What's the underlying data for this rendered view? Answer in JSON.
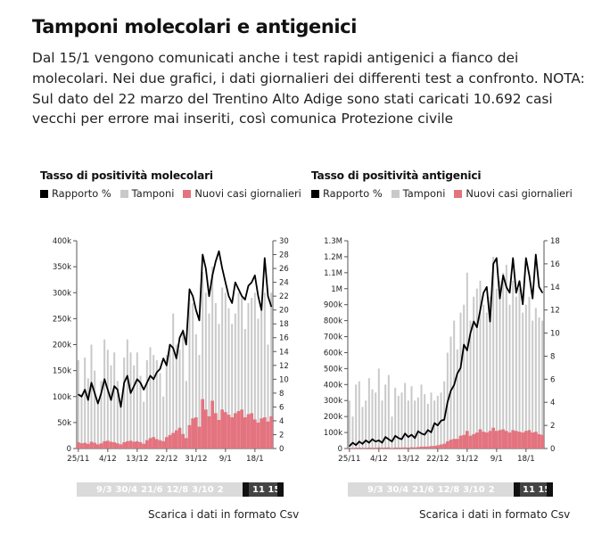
{
  "page": {
    "title": "Tamponi molecolari e antigenici",
    "description": "Dal 15/1 vengono comunicati anche i test rapidi antigenici a fianco dei molecolari. Nei due grafici, i dati giornalieri dei differenti test a confronto. NOTA: Sul dato del 22 marzo del Trentino Alto Adige sono stati caricati 10.692 casi vecchi per errore mai inseriti, così comunica Protezione civile"
  },
  "colors": {
    "line": "#000000",
    "tamponi": "#c9c9c9",
    "casi": "#e3747f",
    "axis": "#555555"
  },
  "chart_data": [
    {
      "type": "bar",
      "title": "Tasso di positività molecolari",
      "legend": [
        "Rapporto %",
        "Tamponi",
        "Nuovi casi giornalieri"
      ],
      "x_tick_labels": [
        "25/11",
        "4/12",
        "13/12",
        "22/12",
        "31/12",
        "9/1",
        "18/1"
      ],
      "x_tick_index": [
        0,
        9,
        18,
        27,
        36,
        45,
        54
      ],
      "y_left": {
        "ticks": [
          0,
          50000,
          100000,
          150000,
          200000,
          250000,
          300000,
          350000,
          400000
        ],
        "tick_labels": [
          "0",
          "50k",
          "100k",
          "150k",
          "200k",
          "250k",
          "300k",
          "350k",
          "400k"
        ],
        "range": [
          0,
          400000
        ]
      },
      "y_right": {
        "ticks": [
          0,
          2,
          4,
          6,
          8,
          10,
          12,
          14,
          16,
          18,
          20,
          22,
          24,
          26,
          28,
          30
        ],
        "tick_labels": [
          "0",
          "2",
          "4",
          "6",
          "8",
          "10",
          "12",
          "14",
          "16",
          "18",
          "20",
          "22",
          "24",
          "26",
          "28",
          "30"
        ],
        "range": [
          0,
          30
        ]
      },
      "series": [
        {
          "name": "Tamponi",
          "axis": "left",
          "kind": "bar",
          "values": [
            170000,
            105000,
            175000,
            135000,
            200000,
            150000,
            90000,
            130000,
            210000,
            190000,
            160000,
            185000,
            130000,
            90000,
            175000,
            210000,
            185000,
            160000,
            185000,
            140000,
            90000,
            170000,
            195000,
            180000,
            170000,
            145000,
            100000,
            180000,
            195000,
            260000,
            200000,
            190000,
            230000,
            130000,
            290000,
            280000,
            220000,
            180000,
            340000,
            300000,
            260000,
            350000,
            280000,
            240000,
            310000,
            300000,
            270000,
            240000,
            260000,
            300000,
            290000,
            230000,
            280000,
            290000,
            300000,
            250000,
            280000,
            300000,
            200000,
            300000
          ]
        },
        {
          "name": "Nuovi casi giornalieri",
          "axis": "left",
          "kind": "bar",
          "values": [
            12000,
            10000,
            11000,
            9000,
            13000,
            11000,
            8000,
            10000,
            14000,
            15000,
            13000,
            12000,
            10000,
            8000,
            12000,
            14000,
            15000,
            13000,
            14000,
            12000,
            9000,
            16000,
            20000,
            22000,
            18000,
            16000,
            14000,
            22000,
            26000,
            30000,
            35000,
            40000,
            28000,
            20000,
            45000,
            58000,
            60000,
            42000,
            95000,
            75000,
            62000,
            92000,
            68000,
            55000,
            75000,
            70000,
            65000,
            60000,
            68000,
            72000,
            75000,
            60000,
            66000,
            68000,
            56000,
            50000,
            58000,
            60000,
            52000,
            62000
          ]
        },
        {
          "name": "Rapporto %",
          "axis": "right",
          "kind": "line",
          "values": [
            7.8,
            7.5,
            8.5,
            7.0,
            9.5,
            8.0,
            6.5,
            8.0,
            10.0,
            8.5,
            7.0,
            9.0,
            8.5,
            6.0,
            9.5,
            10.5,
            8.0,
            9.0,
            10.0,
            9.5,
            8.5,
            9.5,
            10.5,
            10.0,
            11.0,
            11.5,
            13.0,
            12.0,
            15.0,
            14.5,
            13.0,
            16.0,
            17.0,
            15.0,
            23.0,
            22.0,
            20.0,
            18.5,
            28.0,
            26.0,
            22.0,
            25.0,
            27.0,
            28.5,
            26.0,
            24.0,
            22.0,
            21.0,
            24.0,
            23.0,
            22.0,
            21.5,
            23.5,
            24.0,
            25.0,
            22.0,
            20.0,
            27.5,
            22.0,
            20.5
          ]
        }
      ]
    },
    {
      "type": "bar",
      "title": "Tasso di positività antigenici",
      "legend": [
        "Rapporto %",
        "Tamponi",
        "Nuovi casi giornalieri"
      ],
      "x_tick_labels": [
        "25/11",
        "4/12",
        "13/12",
        "22/12",
        "31/12",
        "9/1",
        "18/1"
      ],
      "x_tick_index": [
        0,
        9,
        18,
        27,
        36,
        45,
        54
      ],
      "y_left": {
        "ticks": [
          0,
          100000,
          200000,
          300000,
          400000,
          500000,
          600000,
          700000,
          800000,
          900000,
          1000000,
          1100000,
          1200000,
          1300000
        ],
        "tick_labels": [
          "0",
          "100k",
          "200k",
          "300k",
          "400k",
          "500k",
          "600k",
          "700k",
          "800k",
          "900k",
          "1M",
          "1.1M",
          "1.2M",
          "1.3M"
        ],
        "range": [
          0,
          1300000
        ]
      },
      "y_right": {
        "ticks": [
          0,
          2,
          4,
          6,
          8,
          10,
          12,
          14,
          16,
          18
        ],
        "tick_labels": [
          "0",
          "2",
          "4",
          "6",
          "8",
          "10",
          "12",
          "14",
          "16",
          "18"
        ],
        "range": [
          0,
          18
        ]
      },
      "series": [
        {
          "name": "Tamponi",
          "axis": "left",
          "kind": "bar",
          "values": [
            300000,
            200000,
            400000,
            420000,
            260000,
            300000,
            440000,
            370000,
            350000,
            500000,
            300000,
            400000,
            460000,
            200000,
            380000,
            330000,
            350000,
            410000,
            300000,
            390000,
            300000,
            320000,
            400000,
            340000,
            280000,
            350000,
            300000,
            330000,
            350000,
            420000,
            600000,
            700000,
            800000,
            620000,
            850000,
            900000,
            1100000,
            800000,
            950000,
            1000000,
            1050000,
            900000,
            850000,
            950000,
            1200000,
            1000000,
            1050000,
            1100000,
            1150000,
            900000,
            1050000,
            950000,
            1000000,
            850000,
            900000,
            950000,
            800000,
            880000,
            820000,
            800000
          ]
        },
        {
          "name": "Nuovi casi giornalieri",
          "axis": "left",
          "kind": "bar",
          "values": [
            4000,
            3000,
            5000,
            5000,
            4000,
            4000,
            6000,
            5000,
            5000,
            7000,
            5000,
            6000,
            7000,
            3000,
            6000,
            6000,
            6000,
            7000,
            6000,
            8000,
            7000,
            9000,
            12000,
            12000,
            12000,
            15000,
            16000,
            20000,
            25000,
            30000,
            45000,
            55000,
            60000,
            60000,
            80000,
            85000,
            110000,
            80000,
            90000,
            100000,
            120000,
            105000,
            100000,
            110000,
            130000,
            110000,
            115000,
            120000,
            110000,
            100000,
            115000,
            110000,
            105000,
            100000,
            110000,
            115000,
            100000,
            105000,
            90000,
            85000
          ]
        },
        {
          "name": "Rapporto %",
          "axis": "right",
          "kind": "line",
          "values": [
            0.2,
            0.5,
            0.3,
            0.6,
            0.4,
            0.7,
            0.5,
            0.8,
            0.6,
            0.7,
            0.5,
            1.0,
            0.8,
            0.6,
            1.1,
            0.9,
            0.8,
            1.3,
            1.0,
            1.2,
            0.9,
            1.5,
            1.3,
            1.2,
            1.6,
            1.4,
            2.2,
            2.0,
            2.4,
            2.5,
            4.0,
            5.0,
            5.5,
            6.5,
            7.0,
            9.0,
            8.5,
            10.0,
            11.0,
            10.5,
            12.0,
            13.5,
            14.0,
            11.0,
            16.0,
            16.5,
            13.0,
            15.0,
            14.0,
            13.5,
            16.5,
            13.5,
            14.5,
            12.5,
            16.5,
            15.0,
            13.0,
            16.8,
            14.0,
            13.5
          ]
        }
      ]
    }
  ],
  "range_selectors": [
    {
      "labels": [
        "9/3",
        "30/4",
        "21/6",
        "12/8",
        "3/10",
        "2"
      ],
      "selected_label": "11 15"
    },
    {
      "labels": [
        "9/3",
        "30/4",
        "21/6",
        "12/8",
        "3/10",
        "2"
      ],
      "selected_label": "11 15"
    }
  ],
  "csv_links": [
    "Scarica i dati in formato Csv",
    "Scarica i dati in formato Csv"
  ]
}
